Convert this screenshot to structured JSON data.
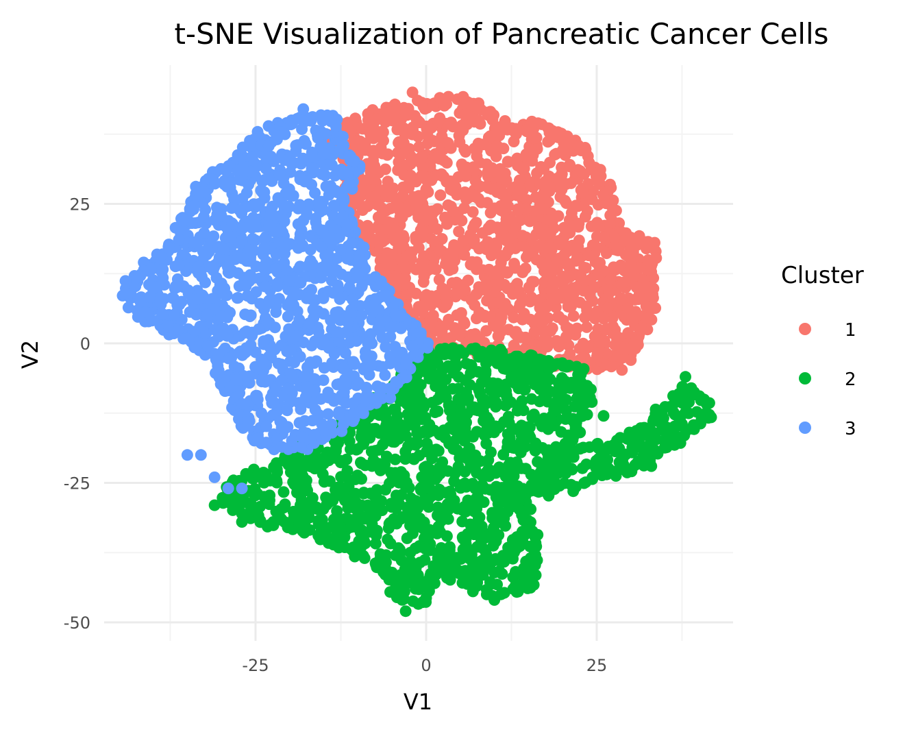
{
  "chart_data": {
    "type": "scatter",
    "title": "t-SNE Visualization of Pancreatic Cancer Cells",
    "xlabel": "V1",
    "ylabel": "V2",
    "xlim": [
      -48,
      48
    ],
    "ylim": [
      -52,
      48
    ],
    "x_ticks": [
      -25,
      0,
      25
    ],
    "y_ticks": [
      25,
      0,
      -25,
      -50
    ],
    "x_tick_labels": [
      "-25",
      "0",
      "25"
    ],
    "y_tick_labels": [
      "25",
      "0",
      "-25",
      "-50"
    ],
    "grid": true,
    "legend": {
      "title": "Cluster",
      "placement": "right"
    },
    "series": [
      {
        "name": "1",
        "color": "#F8766D",
        "regions": [
          {
            "polygon": [
              [
                -13,
                39
              ],
              [
                -6,
                42
              ],
              [
                0,
                43
              ],
              [
                6,
                44
              ],
              [
                12,
                39
              ],
              [
                18,
                39
              ],
              [
                22,
                36
              ],
              [
                25,
                31
              ],
              [
                27,
                26
              ],
              [
                28,
                20
              ],
              [
                33,
                18
              ],
              [
                33,
                5
              ],
              [
                31,
                0
              ],
              [
                28,
                -4
              ],
              [
                22,
                -4
              ],
              [
                15,
                -3
              ],
              [
                5,
                -1
              ],
              [
                1,
                0
              ],
              [
                -2,
                4
              ],
              [
                -4,
                8
              ],
              [
                -6,
                13
              ],
              [
                -8,
                18
              ],
              [
                -10,
                22
              ],
              [
                -11,
                25
              ],
              [
                -12,
                28
              ],
              [
                -11,
                31
              ],
              [
                -12,
                35
              ],
              [
                -14,
                37
              ]
            ]
          }
        ],
        "outliers": [
          [
            -2,
            45
          ],
          [
            2,
            44
          ],
          [
            -11,
            38
          ],
          [
            26,
            13
          ],
          [
            32,
            10
          ],
          [
            33,
            14
          ],
          [
            30,
            -3
          ],
          [
            23,
            27
          ],
          [
            26,
            19
          ]
        ]
      },
      {
        "name": "2",
        "color": "#00BA38",
        "regions": [
          {
            "polygon": [
              [
                -1,
                -2
              ],
              [
                5,
                -1
              ],
              [
                12,
                -2
              ],
              [
                18,
                -3
              ],
              [
                23,
                -5
              ],
              [
                24,
                -10
              ],
              [
                22,
                -16
              ],
              [
                20,
                -22
              ],
              [
                14,
                -28
              ],
              [
                16,
                -35
              ],
              [
                15,
                -44
              ],
              [
                10,
                -45
              ],
              [
                6,
                -43
              ],
              [
                2,
                -40
              ],
              [
                -1,
                -47
              ],
              [
                -4,
                -46
              ],
              [
                -6,
                -40
              ],
              [
                -12,
                -37
              ],
              [
                -18,
                -33
              ],
              [
                -24,
                -32
              ],
              [
                -30,
                -28
              ],
              [
                -28,
                -25
              ],
              [
                -22,
                -22
              ],
              [
                -14,
                -16
              ],
              [
                -8,
                -11
              ],
              [
                -4,
                -7
              ]
            ]
          },
          {
            "polygon": [
              [
                17,
                -27
              ],
              [
                18,
                -21
              ],
              [
                22,
                -19
              ],
              [
                28,
                -18
              ],
              [
                33,
                -14
              ],
              [
                38,
                -8
              ],
              [
                41,
                -10
              ],
              [
                41,
                -14
              ],
              [
                36,
                -18
              ],
              [
                30,
                -22
              ],
              [
                24,
                -25
              ]
            ]
          }
        ],
        "outliers": [
          [
            -31,
            -29
          ],
          [
            -27,
            -32
          ],
          [
            26,
            -13
          ],
          [
            33,
            -22
          ],
          [
            38,
            -6
          ],
          [
            10,
            -46
          ],
          [
            -3,
            -48
          ]
        ]
      },
      {
        "name": "3",
        "color": "#619CFF",
        "regions": [
          {
            "polygon": [
              [
                -19,
                40
              ],
              [
                -24,
                38
              ],
              [
                -28,
                32
              ],
              [
                -33,
                29
              ],
              [
                -35,
                24
              ],
              [
                -37,
                18
              ],
              [
                -41,
                14
              ],
              [
                -44,
                10
              ],
              [
                -43,
                6
              ],
              [
                -39,
                3
              ],
              [
                -35,
                0
              ],
              [
                -31,
                -2
              ],
              [
                -30,
                -8
              ],
              [
                -28,
                -11
              ],
              [
                -27,
                -15
              ],
              [
                -24,
                -18
              ],
              [
                -19,
                -19
              ],
              [
                -14,
                -16
              ],
              [
                -8,
                -11
              ],
              [
                -4,
                -7
              ],
              [
                0,
                0
              ],
              [
                -4,
                6
              ],
              [
                -8,
                12
              ],
              [
                -11,
                20
              ],
              [
                -12,
                26
              ],
              [
                -10,
                32
              ],
              [
                -13,
                37
              ],
              [
                -14,
                41
              ]
            ]
          }
        ],
        "outliers": [
          [
            -33,
            -20
          ],
          [
            -31,
            -24
          ],
          [
            -29,
            -26
          ],
          [
            -27,
            -26
          ],
          [
            -35,
            -20
          ],
          [
            -20,
            27
          ],
          [
            -44,
            9
          ],
          [
            -18,
            42
          ],
          [
            -15,
            34
          ]
        ]
      }
    ]
  }
}
